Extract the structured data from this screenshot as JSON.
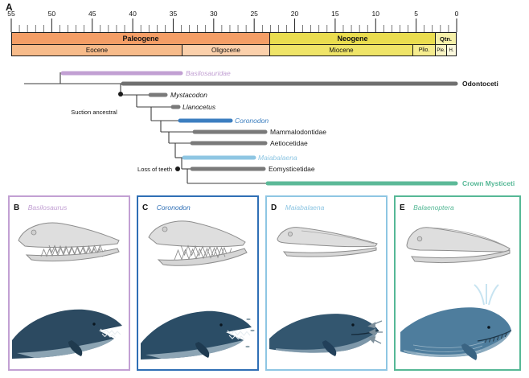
{
  "figure": {
    "panel_label": "A",
    "timescale": {
      "tick_labels": [
        "55",
        "50",
        "45",
        "40",
        "35",
        "30",
        "25",
        "20",
        "15",
        "10",
        "5",
        "0"
      ],
      "periods": [
        {
          "label": "Paleogene",
          "from_ma": 55,
          "to_ma": 23
        },
        {
          "label": "Neogene",
          "from_ma": 23,
          "to_ma": 2.6
        },
        {
          "label": "Qtn.",
          "from_ma": 2.6,
          "to_ma": 0
        }
      ],
      "epochs": [
        {
          "label": "Eocene",
          "from_ma": 55,
          "to_ma": 33.9
        },
        {
          "label": "Oligocene",
          "from_ma": 33.9,
          "to_ma": 23
        },
        {
          "label": "Miocene",
          "from_ma": 23,
          "to_ma": 5.3
        },
        {
          "label": "Plio.",
          "from_ma": 5.3,
          "to_ma": 2.6
        },
        {
          "label": "Ple.",
          "from_ma": 2.6,
          "to_ma": 1.3
        },
        {
          "label": "H.",
          "from_ma": 1.3,
          "to_ma": 0
        }
      ]
    },
    "tree": {
      "annotations": [
        {
          "label": "Suction ancestral"
        },
        {
          "label": "Loss of teeth"
        }
      ],
      "tips": [
        {
          "label": "Basilosauridae",
          "color": "#c2a0d3"
        },
        {
          "label": "Odontoceti",
          "color": "#000000"
        },
        {
          "label": "Mystacodon",
          "color": "#1a1a1a"
        },
        {
          "label": "Llanocetus",
          "color": "#1a1a1a"
        },
        {
          "label": "Coronodon",
          "color": "#3a7dbf"
        },
        {
          "label": "Mammalodontidae",
          "color": "#1a1a1a"
        },
        {
          "label": "Aetiocetidae",
          "color": "#1a1a1a"
        },
        {
          "label": "Maiabalaena",
          "color": "#8ec6e3"
        },
        {
          "label": "Eomysticetidae",
          "color": "#1a1a1a"
        },
        {
          "label": "Crown Mysticeti",
          "color": "#56b896"
        }
      ]
    },
    "panels": [
      {
        "letter": "B",
        "species": "Basilosaurus",
        "color": "#c2a0d3"
      },
      {
        "letter": "C",
        "species": "Coronodon",
        "color": "#2f6fb5"
      },
      {
        "letter": "D",
        "species": "Maiabalaena",
        "color": "#8ec6e3"
      },
      {
        "letter": "E",
        "species": "Balaenoptera",
        "color": "#56b896"
      }
    ]
  }
}
